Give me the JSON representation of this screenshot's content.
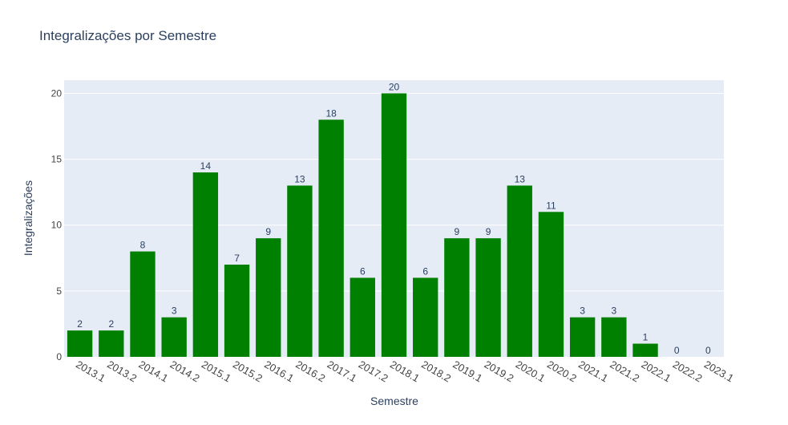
{
  "colors": {
    "bar": "#008000",
    "plot_bg": "#E5ECF6",
    "grid": "#FFFFFF",
    "text": "#2A3F5F",
    "axis_text": "#444444"
  },
  "chart_data": {
    "type": "bar",
    "title": "Integralizações por Semestre",
    "xlabel": "Semestre",
    "ylabel": "Integralizações",
    "categories": [
      "2013.1",
      "2013.2",
      "2014.1",
      "2014.2",
      "2015.1",
      "2015.2",
      "2016.1",
      "2016.2",
      "2017.1",
      "2017.2",
      "2018.1",
      "2018.2",
      "2019.1",
      "2019.2",
      "2020.1",
      "2020.2",
      "2021.1",
      "2021.2",
      "2022.1",
      "2022.2",
      "2023.1"
    ],
    "values": [
      2,
      2,
      8,
      3,
      14,
      7,
      9,
      13,
      18,
      6,
      20,
      6,
      9,
      9,
      13,
      11,
      3,
      3,
      1,
      0,
      0
    ],
    "ylim": [
      0,
      21
    ],
    "yticks": [
      0,
      5,
      10,
      15,
      20
    ],
    "grid": true,
    "data_labels": true
  }
}
